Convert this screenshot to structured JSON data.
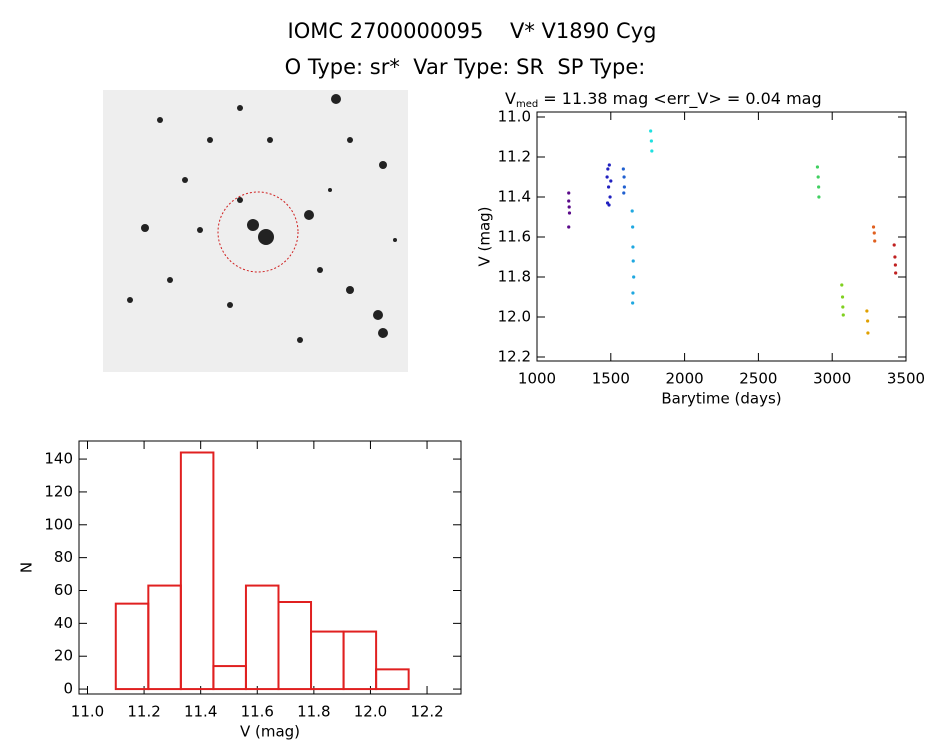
{
  "header": {
    "title": "IOMC 2700000095    V* V1890 Cyg",
    "subtitle": "O Type: sr*  Var Type: SR  SP Type:"
  },
  "chart_data": [
    {
      "type": "scatter",
      "title": {
        "main": "V",
        "sub": "med",
        "rest": " = 11.38 mag <err_V> = 0.04 mag"
      },
      "x_label": "Barytime (days)",
      "y_label": "V (mag)",
      "xlim": [
        1000,
        3500
      ],
      "xticks": [
        1000,
        1500,
        2000,
        2500,
        3000,
        3500
      ],
      "ylim": [
        10.975,
        12.22
      ],
      "y_inverted": true,
      "yticks": [
        {
          "value": 11,
          "label": "11.0"
        },
        11.2,
        11.4,
        11.6,
        11.8,
        {
          "value": 12,
          "label": "12.0"
        },
        12.2
      ],
      "series": [
        {
          "color": "#5a0a8a",
          "x": [
            1215,
            1215,
            1218,
            1220,
            1215
          ],
          "values": [
            11.38,
            11.42,
            11.45,
            11.48,
            11.55
          ]
        },
        {
          "color": "#2020c0",
          "x": [
            1475,
            1480,
            1485,
            1490,
            1495,
            1500,
            1478,
            1488
          ],
          "values": [
            11.3,
            11.26,
            11.35,
            11.24,
            11.4,
            11.32,
            11.43,
            11.44
          ]
        },
        {
          "color": "#2060d0",
          "x": [
            1585,
            1590,
            1592,
            1588
          ],
          "values": [
            11.26,
            11.3,
            11.35,
            11.38
          ]
        },
        {
          "color": "#20a8e0",
          "x": [
            1645,
            1648,
            1650,
            1652,
            1655,
            1650,
            1648
          ],
          "values": [
            11.47,
            11.55,
            11.65,
            11.72,
            11.8,
            11.88,
            11.93
          ]
        },
        {
          "color": "#20e0e0",
          "x": [
            1770,
            1775,
            1778
          ],
          "values": [
            11.07,
            11.12,
            11.17
          ]
        },
        {
          "color": "#40d060",
          "x": [
            2900,
            2905,
            2908,
            2910
          ],
          "values": [
            11.25,
            11.3,
            11.35,
            11.4
          ]
        },
        {
          "color": "#80d020",
          "x": [
            3065,
            3070,
            3072,
            3075
          ],
          "values": [
            11.84,
            11.9,
            11.95,
            11.99
          ]
        },
        {
          "color": "#e0a000",
          "x": [
            3235,
            3240,
            3242
          ],
          "values": [
            11.97,
            12.02,
            12.08
          ]
        },
        {
          "color": "#e06020",
          "x": [
            3280,
            3285,
            3288
          ],
          "values": [
            11.55,
            11.58,
            11.62
          ]
        },
        {
          "color": "#c02020",
          "x": [
            3420,
            3425,
            3428,
            3430
          ],
          "values": [
            11.64,
            11.7,
            11.74,
            11.78
          ]
        }
      ]
    },
    {
      "type": "histogram",
      "x_label": "V (mag)",
      "y_label": "N",
      "color": "#e02020",
      "bins": [
        11.1,
        11.215,
        11.33,
        11.445,
        11.56,
        11.675,
        11.79,
        11.905,
        12.02,
        12.135
      ],
      "values": [
        52,
        63,
        144,
        14,
        63,
        53,
        35,
        35,
        12
      ],
      "xlim": [
        10.97,
        12.32
      ],
      "xticks": [
        {
          "value": 11,
          "label": "11.0"
        },
        11.2,
        11.4,
        11.6,
        11.8,
        {
          "value": 12,
          "label": "12.0"
        },
        12.2
      ],
      "ylim": [
        -3,
        151
      ],
      "yticks": [
        0,
        20,
        40,
        60,
        80,
        100,
        120,
        140
      ]
    }
  ]
}
